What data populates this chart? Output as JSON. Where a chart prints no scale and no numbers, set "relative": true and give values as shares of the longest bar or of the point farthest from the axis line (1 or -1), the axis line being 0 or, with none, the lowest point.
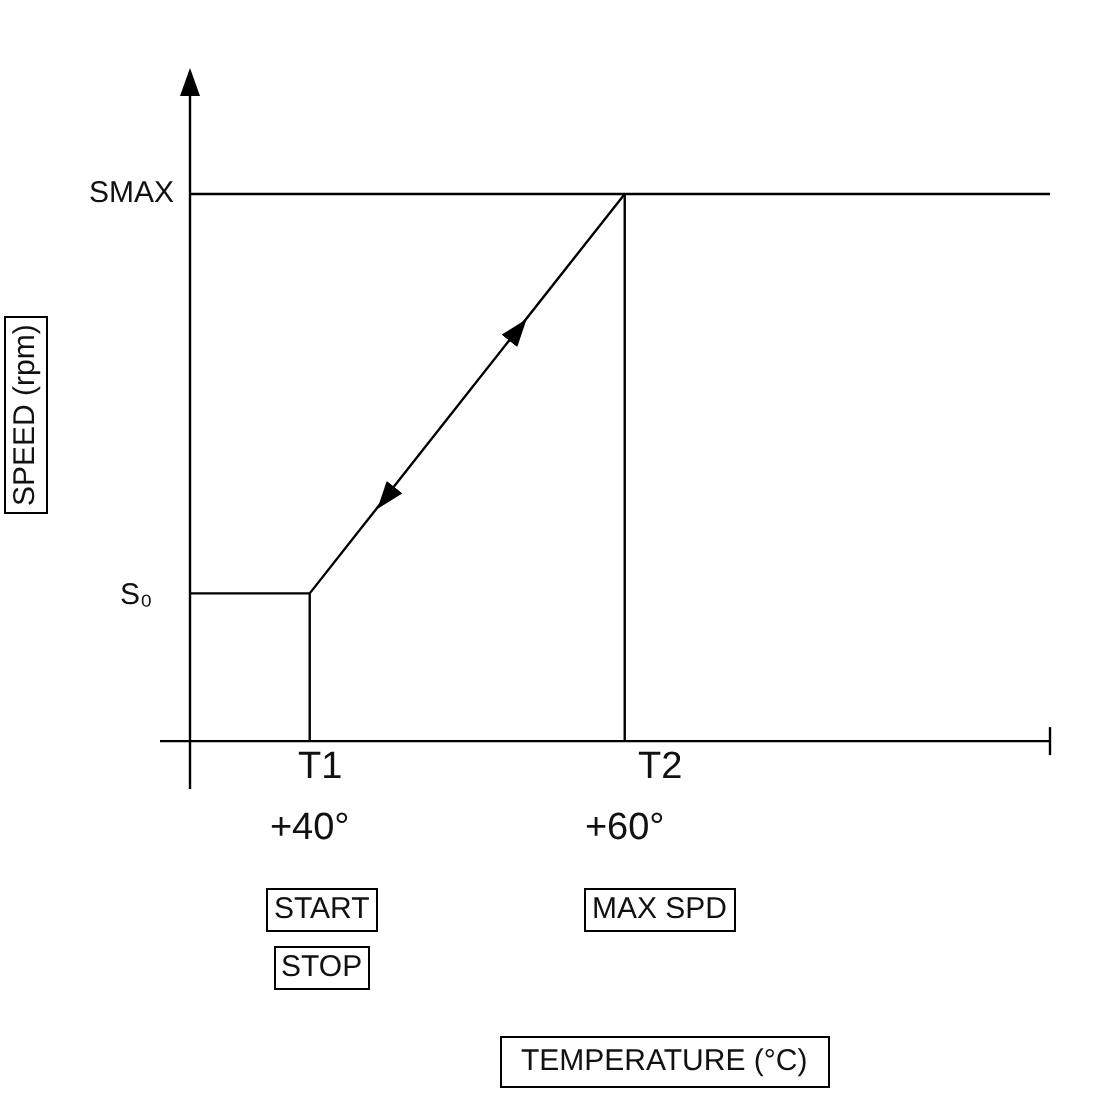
{
  "chart_data": {
    "type": "line",
    "relative": true,
    "ylabel": "SPEED (rpm)",
    "xlim": [
      32.4,
      87
    ],
    "xticks": [
      {
        "value": 40,
        "label": "+40°"
      },
      {
        "value": 60,
        "label": "+60°"
      },
      {
        "value": 87,
        "label": null
      }
    ],
    "series": [
      {
        "color": "#000000",
        "x": [
          32.4,
          40,
          60,
          87
        ],
        "values": [
          0.27,
          0.27,
          1,
          1
        ]
      },
      {
        "color": "#000000",
        "x": [
          32.4,
          60
        ],
        "values": [
          1,
          1
        ]
      },
      {
        "color": "#000000",
        "x": [
          40,
          40
        ],
        "values": [
          0,
          0.27
        ]
      },
      {
        "color": "#000000",
        "x": [
          60,
          60
        ],
        "values": [
          0,
          1
        ]
      }
    ],
    "annotations": [
      "S₀",
      "SMAX",
      "T1",
      "T2",
      "START",
      "STOP",
      "MAX SPD",
      "TEMPERATURE (°C)"
    ],
    "grid": false,
    "legend": false,
    "marker": "none",
    "line_style": "solid"
  }
}
